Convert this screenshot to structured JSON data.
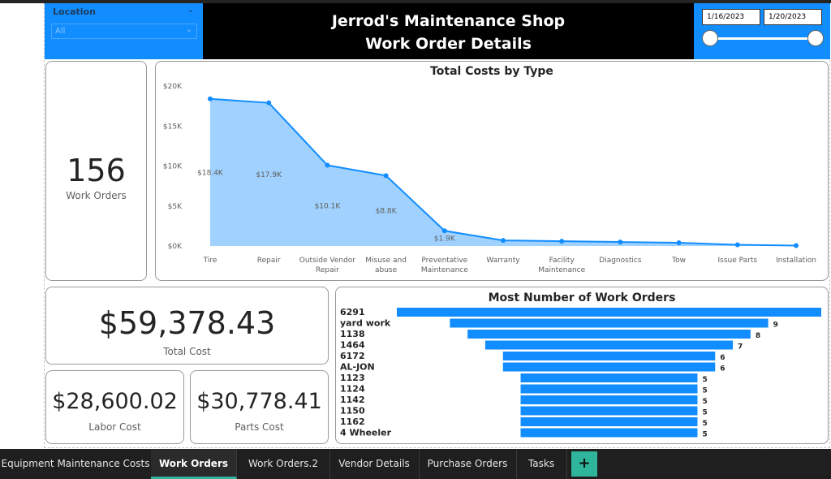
{
  "header": {
    "title_line1": "Jerrod's Maintenance Shop",
    "title_line2": "Work Order Details"
  },
  "location_slicer": {
    "label": "Location",
    "selection": "All"
  },
  "date_slicer": {
    "start": "1/16/2023",
    "end": "1/20/2023"
  },
  "cards": [
    {
      "value": "156",
      "label": "Work Orders"
    },
    {
      "value": "$59,378.43",
      "label": "Total Cost"
    },
    {
      "value": "$28,600.02",
      "label": "Labor Cost"
    },
    {
      "value": "$30,778.41",
      "label": "Parts Cost"
    }
  ],
  "chart_data": [
    {
      "type": "area",
      "title": "Total Costs by Type",
      "categories": [
        "Tire",
        "Repair",
        "Outside Vendor Repair",
        "Misuse and abuse",
        "Preventative Maintenance",
        "Warranty",
        "Facility Maintenance",
        "Diagnostics",
        "Tow",
        "Issue Parts",
        "Installation"
      ],
      "values": [
        18400,
        17900,
        10100,
        8800,
        1900,
        700,
        600,
        500,
        400,
        150,
        50
      ],
      "value_labels": [
        "$18.4K",
        "$17.9K",
        "$10.1K",
        "$8.8K",
        "$1.9K",
        null,
        null,
        null,
        null,
        null,
        null
      ],
      "color": "#118dff",
      "fill": "#a0d1ff",
      "ylim": [
        0,
        20000
      ],
      "yticks": [
        {
          "value": 0,
          "label": "$0K"
        },
        {
          "value": 5000,
          "label": "$5K"
        },
        {
          "value": 10000,
          "label": "$10K"
        },
        {
          "value": 15000,
          "label": "$15K"
        },
        {
          "value": 20000,
          "label": "$20K"
        }
      ],
      "grid": false
    },
    {
      "type": "funnel",
      "title": "Most Number of Work Orders",
      "categories": [
        "6291",
        "yard work",
        "1138",
        "1464",
        "6172",
        "AL-JON",
        "1123",
        "1124",
        "1142",
        "1150",
        "1162",
        "4 Wheeler"
      ],
      "values": [
        12,
        9,
        8,
        7,
        6,
        6,
        5,
        5,
        5,
        5,
        5,
        5
      ],
      "value_labels": [
        null,
        "9",
        "8",
        "7",
        "6",
        "6",
        "5",
        "5",
        "5",
        "5",
        "5",
        "5"
      ],
      "color": "#118dff"
    }
  ],
  "tabs": [
    "Equipment Maintenance Costs",
    "Work Orders",
    "Work Orders.2",
    "Vendor Details",
    "Purchase Orders",
    "Tasks"
  ],
  "active_tab": 1,
  "add_tab": "+"
}
